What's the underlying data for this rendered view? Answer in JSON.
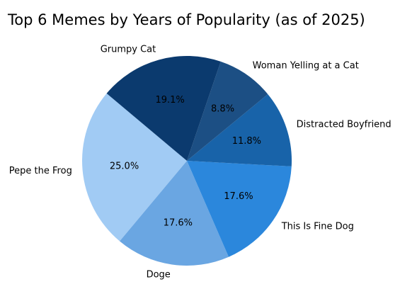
{
  "chart_data": {
    "type": "pie",
    "title": "Top 6 Memes by Years of Popularity (as of 2025)",
    "categories": [
      "Pepe the Frog",
      "Doge",
      "This Is Fine Dog",
      "Distracted Boyfriend",
      "Woman Yelling at a Cat",
      "Grumpy Cat"
    ],
    "values": [
      25.0,
      17.6,
      17.6,
      11.8,
      8.8,
      19.1
    ],
    "pct_labels": [
      "25.0%",
      "17.6%",
      "17.6%",
      "11.8%",
      "8.8%",
      "19.1%"
    ],
    "colors": [
      "#a1cbf4",
      "#6aa6e2",
      "#2b87dc",
      "#1863a9",
      "#1c4f84",
      "#0b3a6e"
    ],
    "start_angle_deg": 140,
    "direction": "counterclockwise"
  }
}
